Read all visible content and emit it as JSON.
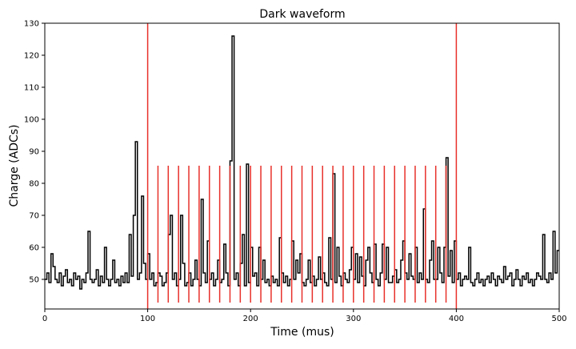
{
  "chart_data": {
    "type": "step",
    "title": "Dark waveform",
    "xlabel": "Time (mus)",
    "ylabel": "Charge (ADCs)",
    "xlim": [
      0,
      500
    ],
    "ylim": [
      40.75,
      130
    ],
    "xticks": [
      0,
      100,
      200,
      300,
      400,
      500
    ],
    "yticks": [
      50,
      60,
      70,
      80,
      90,
      100,
      110,
      120,
      130
    ],
    "series": [
      {
        "name": "waveform",
        "color": "#000000",
        "x": [
          0,
          2,
          4,
          6,
          8,
          10,
          12,
          14,
          16,
          18,
          20,
          22,
          24,
          26,
          28,
          30,
          32,
          34,
          36,
          38,
          40,
          42,
          44,
          46,
          48,
          50,
          52,
          54,
          56,
          58,
          60,
          62,
          64,
          66,
          68,
          70,
          72,
          74,
          76,
          78,
          80,
          82,
          84,
          86,
          88,
          90,
          92,
          94,
          96,
          98,
          100,
          102,
          104,
          106,
          108,
          110,
          112,
          114,
          116,
          118,
          120,
          122,
          124,
          126,
          128,
          130,
          132,
          134,
          136,
          138,
          140,
          142,
          144,
          146,
          148,
          150,
          152,
          154,
          156,
          158,
          160,
          162,
          164,
          166,
          168,
          170,
          172,
          174,
          176,
          178,
          180,
          182,
          184,
          186,
          188,
          190,
          192,
          194,
          196,
          198,
          200,
          202,
          204,
          206,
          208,
          210,
          212,
          214,
          216,
          218,
          220,
          222,
          224,
          226,
          228,
          230,
          232,
          234,
          236,
          238,
          240,
          242,
          244,
          246,
          248,
          250,
          252,
          254,
          256,
          258,
          260,
          262,
          264,
          266,
          268,
          270,
          272,
          274,
          276,
          278,
          280,
          282,
          284,
          286,
          288,
          290,
          292,
          294,
          296,
          298,
          300,
          302,
          304,
          306,
          308,
          310,
          312,
          314,
          316,
          318,
          320,
          322,
          324,
          326,
          328,
          330,
          332,
          334,
          336,
          338,
          340,
          342,
          344,
          346,
          348,
          350,
          352,
          354,
          356,
          358,
          360,
          362,
          364,
          366,
          368,
          370,
          372,
          374,
          376,
          378,
          380,
          382,
          384,
          386,
          388,
          390,
          392,
          394,
          396,
          398,
          400,
          402,
          404,
          406,
          408,
          410,
          412,
          414,
          416,
          418,
          420,
          422,
          424,
          426,
          428,
          430,
          432,
          434,
          436,
          438,
          440,
          442,
          444,
          446,
          448,
          450,
          452,
          454,
          456,
          458,
          460,
          462,
          464,
          466,
          468,
          470,
          472,
          474,
          476,
          478,
          480,
          482,
          484,
          486,
          488,
          490,
          492,
          494,
          496,
          498
        ],
        "values": [
          50,
          52,
          49,
          58,
          54,
          50,
          49,
          52,
          48,
          51,
          53,
          49,
          50,
          48,
          52,
          50,
          51,
          47,
          50,
          49,
          52,
          65,
          50,
          49,
          50,
          53,
          48,
          51,
          49,
          60,
          50,
          48,
          50,
          56,
          49,
          50,
          48,
          51,
          49,
          52,
          49,
          64,
          51,
          70,
          93,
          50,
          52,
          76,
          55,
          50,
          58,
          50,
          52,
          48,
          49,
          52,
          51,
          48,
          49,
          52,
          64,
          70,
          50,
          52,
          48,
          50,
          70,
          55,
          48,
          49,
          52,
          48,
          50,
          56,
          50,
          48,
          75,
          52,
          49,
          62,
          50,
          52,
          48,
          50,
          56,
          49,
          50,
          61,
          52,
          48,
          87,
          126,
          50,
          52,
          48,
          55,
          64,
          48,
          86,
          49,
          60,
          51,
          52,
          48,
          60,
          50,
          56,
          49,
          50,
          48,
          51,
          49,
          50,
          48,
          63,
          52,
          49,
          51,
          48,
          50,
          62,
          50,
          56,
          52,
          58,
          49,
          48,
          50,
          56,
          49,
          51,
          48,
          50,
          57,
          50,
          52,
          49,
          48,
          63,
          50,
          83,
          49,
          60,
          51,
          48,
          52,
          50,
          49,
          53,
          60,
          50,
          58,
          49,
          57,
          51,
          48,
          56,
          60,
          52,
          49,
          61,
          50,
          48,
          52,
          61,
          50,
          60,
          49,
          49,
          51,
          53,
          49,
          50,
          56,
          62,
          52,
          50,
          58,
          51,
          50,
          60,
          49,
          52,
          50,
          72,
          50,
          49,
          56,
          62,
          50,
          50,
          60,
          52,
          49,
          60,
          88,
          51,
          59,
          49,
          62,
          50,
          52,
          48,
          50,
          51,
          50,
          60,
          49,
          48,
          50,
          52,
          49,
          50,
          48,
          50,
          51,
          49,
          52,
          50,
          48,
          51,
          50,
          49,
          54,
          50,
          51,
          52,
          48,
          50,
          53,
          50,
          48,
          51,
          50,
          52,
          49,
          50,
          48,
          50,
          52,
          51,
          50,
          64,
          50,
          49,
          52,
          50,
          65,
          52,
          59
        ]
      }
    ],
    "markers": {
      "color": "#e8302a",
      "full": [
        100,
        400
      ],
      "windows": [
        110,
        120,
        130,
        140,
        150,
        160,
        170,
        180,
        190,
        200,
        210,
        220,
        230,
        240,
        250,
        260,
        270,
        280,
        290,
        300,
        310,
        320,
        330,
        340,
        350,
        360,
        370,
        380,
        390
      ],
      "window_ylim": [
        42.75,
        85.5
      ]
    }
  }
}
